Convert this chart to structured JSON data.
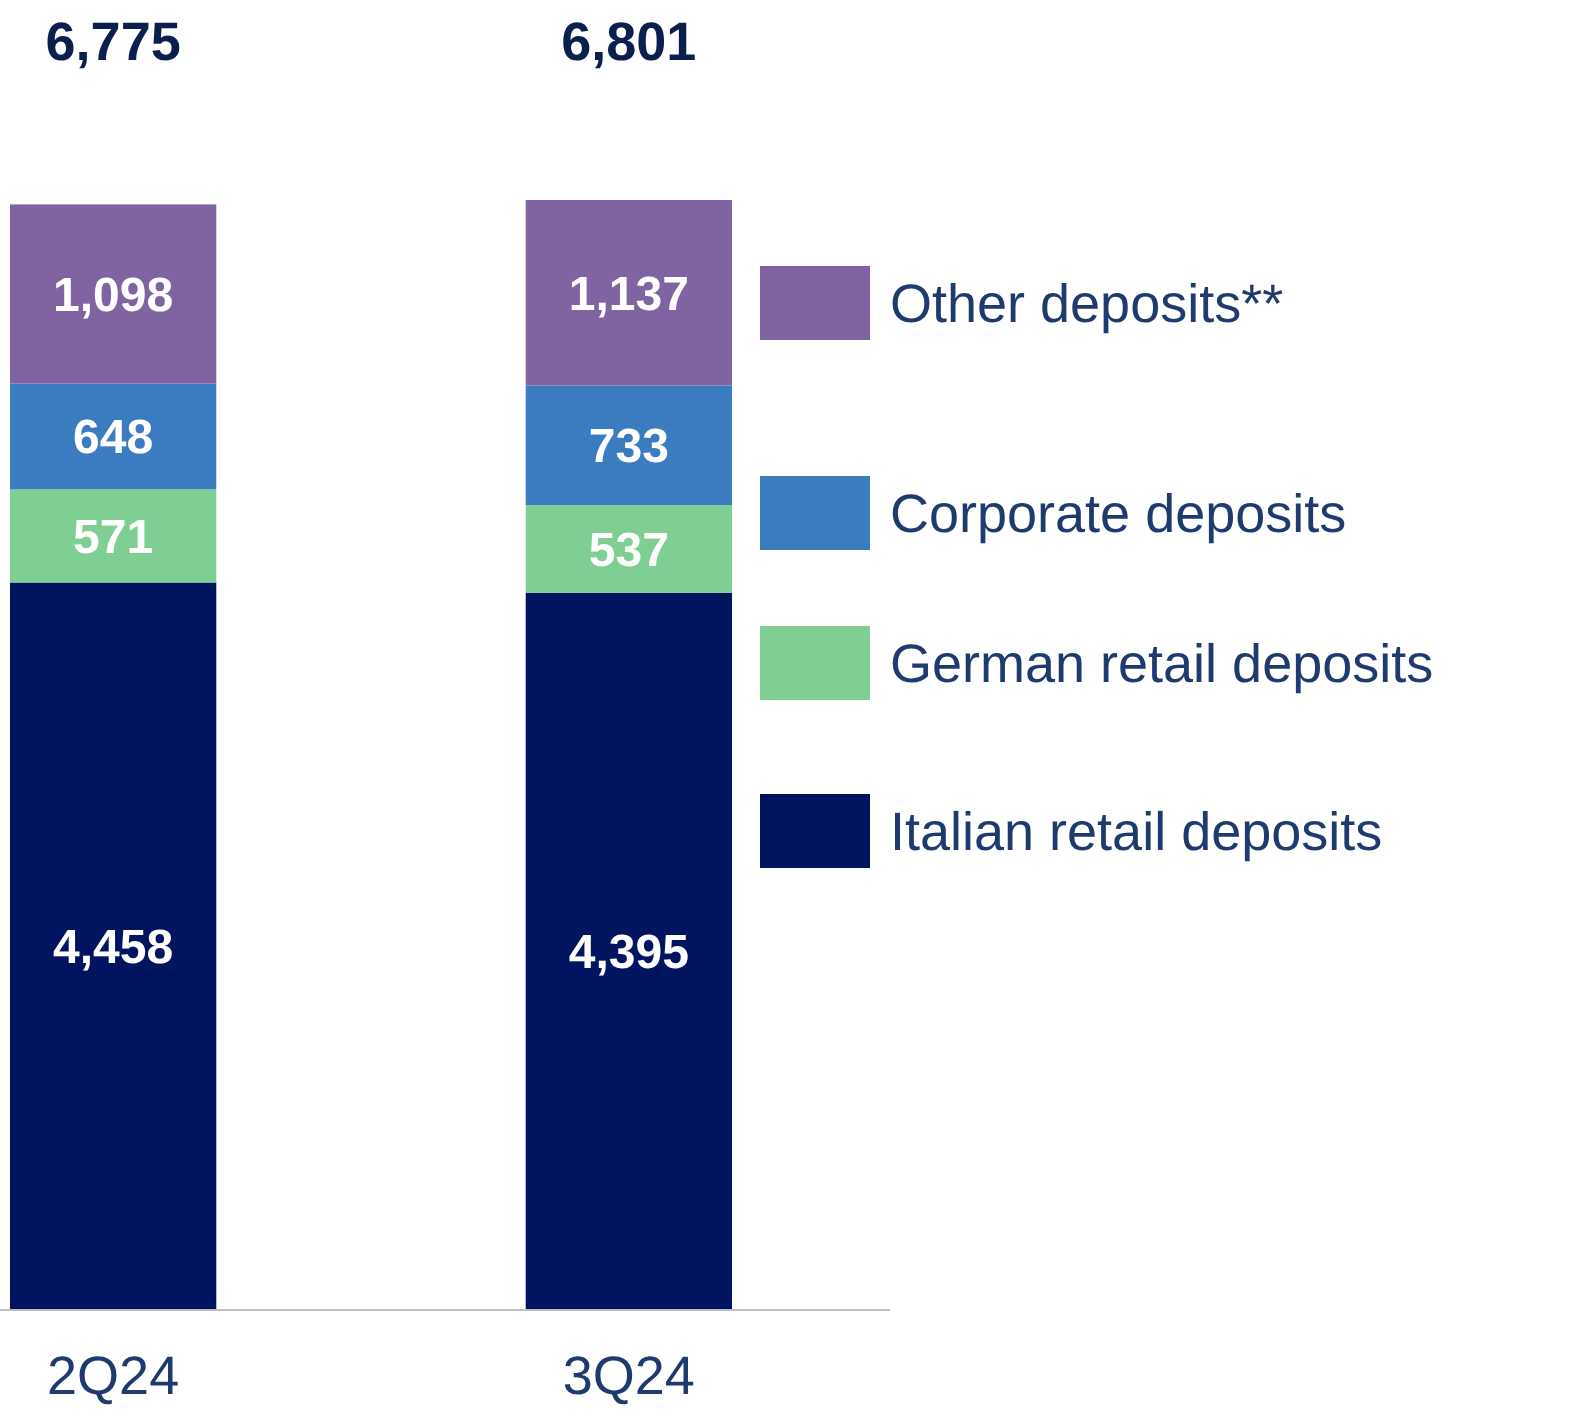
{
  "chart_data": {
    "type": "bar",
    "stacked": true,
    "categories": [
      "2Q24",
      "3Q24"
    ],
    "series": [
      {
        "name": "Italian retail deposits",
        "color": "#00145f",
        "values": [
          4458,
          4395
        ],
        "value_labels": [
          "4,458",
          "4,395"
        ]
      },
      {
        "name": "German retail deposits",
        "color": "#7fcf95",
        "values": [
          571,
          537
        ],
        "value_labels": [
          "571",
          "537"
        ]
      },
      {
        "name": "Corporate deposits",
        "color": "#3b7bbf",
        "values": [
          648,
          733
        ],
        "value_labels": [
          "648",
          "733"
        ]
      },
      {
        "name": "Other deposits**",
        "color": "#8064a2",
        "values": [
          1098,
          1137
        ],
        "value_labels": [
          "1,098",
          "1,137"
        ]
      }
    ],
    "totals": [
      "6,775",
      "6,801"
    ],
    "legend": "right"
  }
}
